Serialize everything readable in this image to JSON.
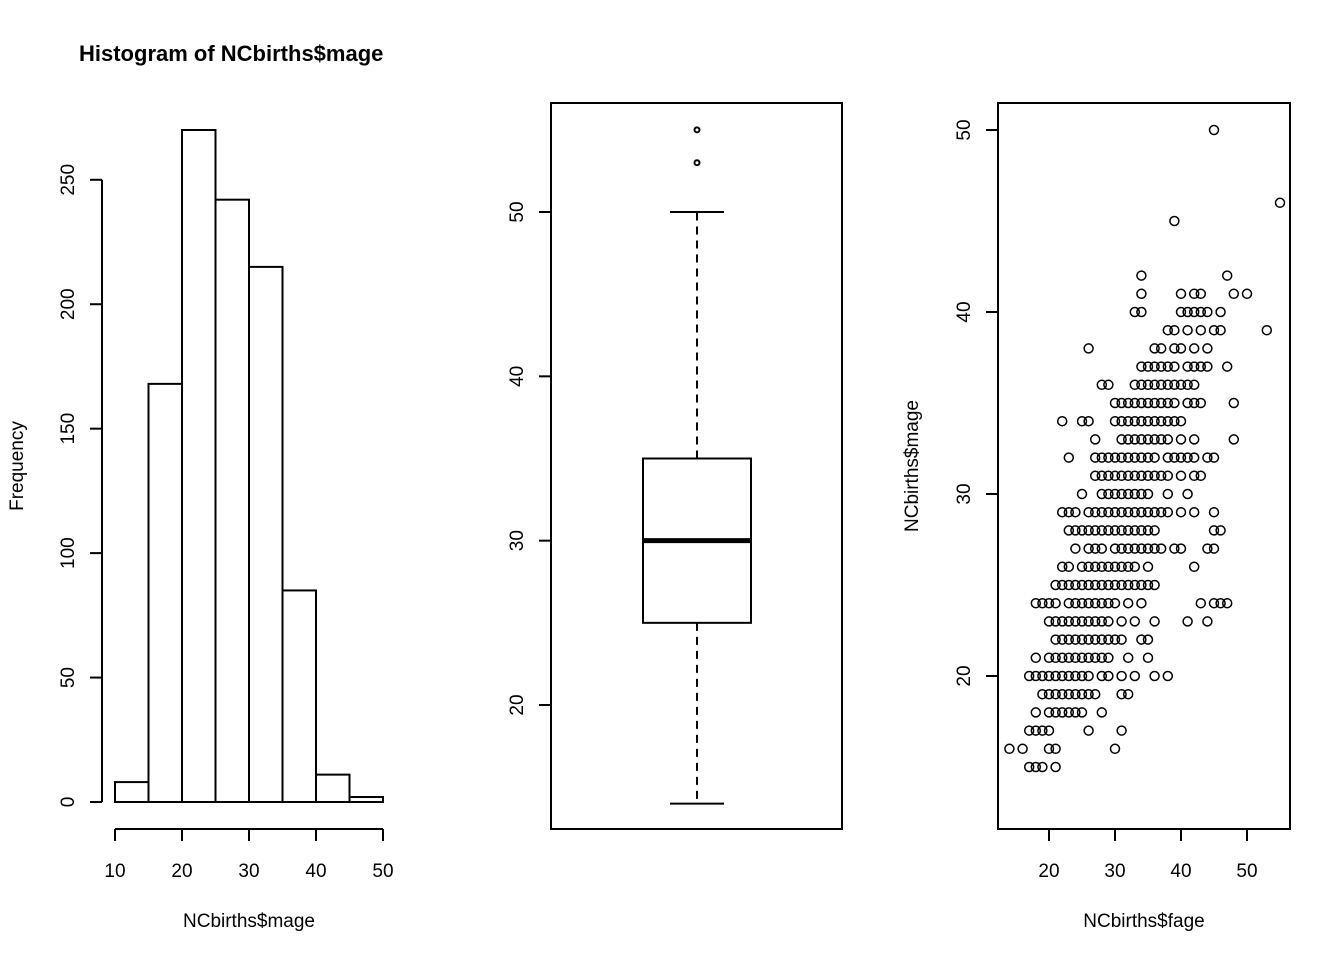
{
  "chart_data": [
    {
      "type": "histogram",
      "title": "Histogram of NCbirths$mage",
      "xlabel": "NCbirths$mage",
      "ylabel": "Frequency",
      "bins": [
        {
          "from": 10,
          "to": 15,
          "count": 8
        },
        {
          "from": 15,
          "to": 20,
          "count": 168
        },
        {
          "from": 20,
          "to": 25,
          "count": 270
        },
        {
          "from": 25,
          "to": 30,
          "count": 242
        },
        {
          "from": 30,
          "to": 35,
          "count": 215
        },
        {
          "from": 35,
          "to": 40,
          "count": 85
        },
        {
          "from": 40,
          "to": 45,
          "count": 11
        },
        {
          "from": 45,
          "to": 50,
          "count": 2
        }
      ],
      "xticks": [
        10,
        20,
        30,
        40,
        50
      ],
      "yticks": [
        0,
        50,
        100,
        150,
        200,
        250
      ],
      "xlim": [
        10,
        50
      ],
      "ylim": [
        0,
        270
      ]
    },
    {
      "type": "boxplot",
      "title": "",
      "xlabel": "",
      "ylabel": "",
      "stats": {
        "lower_whisker": 14,
        "q1": 25,
        "median": 30,
        "q3": 35,
        "upper_whisker": 50
      },
      "outliers": [
        53,
        55
      ],
      "yticks": [
        20,
        30,
        40,
        50
      ],
      "ylim": [
        14,
        55
      ]
    },
    {
      "type": "scatter",
      "title": "",
      "xlabel": "NCbirths$fage",
      "ylabel": "NCbirths$mage",
      "xticks": [
        20,
        30,
        40,
        50
      ],
      "yticks": [
        20,
        30,
        40,
        50
      ],
      "xlim": [
        14,
        55
      ],
      "ylim": [
        15,
        50
      ],
      "points": [
        [
          14,
          16
        ],
        [
          16,
          16
        ],
        [
          20,
          16
        ],
        [
          21,
          16
        ],
        [
          30,
          16
        ],
        [
          17,
          15
        ],
        [
          18,
          15
        ],
        [
          19,
          15
        ],
        [
          21,
          15
        ],
        [
          17,
          17
        ],
        [
          18,
          17
        ],
        [
          19,
          17
        ],
        [
          20,
          17
        ],
        [
          26,
          17
        ],
        [
          31,
          17
        ],
        [
          18,
          18
        ],
        [
          20,
          18
        ],
        [
          21,
          18
        ],
        [
          22,
          18
        ],
        [
          23,
          18
        ],
        [
          24,
          18
        ],
        [
          25,
          18
        ],
        [
          28,
          18
        ],
        [
          19,
          19
        ],
        [
          20,
          19
        ],
        [
          21,
          19
        ],
        [
          22,
          19
        ],
        [
          23,
          19
        ],
        [
          24,
          19
        ],
        [
          25,
          19
        ],
        [
          26,
          19
        ],
        [
          27,
          19
        ],
        [
          31,
          19
        ],
        [
          32,
          19
        ],
        [
          17,
          20
        ],
        [
          18,
          20
        ],
        [
          19,
          20
        ],
        [
          20,
          20
        ],
        [
          21,
          20
        ],
        [
          22,
          20
        ],
        [
          23,
          20
        ],
        [
          24,
          20
        ],
        [
          25,
          20
        ],
        [
          26,
          20
        ],
        [
          28,
          20
        ],
        [
          29,
          20
        ],
        [
          31,
          20
        ],
        [
          33,
          20
        ],
        [
          36,
          20
        ],
        [
          38,
          20
        ],
        [
          18,
          21
        ],
        [
          20,
          21
        ],
        [
          21,
          21
        ],
        [
          22,
          21
        ],
        [
          23,
          21
        ],
        [
          24,
          21
        ],
        [
          25,
          21
        ],
        [
          26,
          21
        ],
        [
          27,
          21
        ],
        [
          28,
          21
        ],
        [
          29,
          21
        ],
        [
          32,
          21
        ],
        [
          35,
          21
        ],
        [
          21,
          22
        ],
        [
          22,
          22
        ],
        [
          23,
          22
        ],
        [
          24,
          22
        ],
        [
          25,
          22
        ],
        [
          26,
          22
        ],
        [
          27,
          22
        ],
        [
          28,
          22
        ],
        [
          29,
          22
        ],
        [
          30,
          22
        ],
        [
          31,
          22
        ],
        [
          34,
          22
        ],
        [
          35,
          22
        ],
        [
          20,
          23
        ],
        [
          21,
          23
        ],
        [
          22,
          23
        ],
        [
          23,
          23
        ],
        [
          24,
          23
        ],
        [
          25,
          23
        ],
        [
          26,
          23
        ],
        [
          27,
          23
        ],
        [
          28,
          23
        ],
        [
          29,
          23
        ],
        [
          31,
          23
        ],
        [
          33,
          23
        ],
        [
          36,
          23
        ],
        [
          41,
          23
        ],
        [
          44,
          23
        ],
        [
          18,
          24
        ],
        [
          19,
          24
        ],
        [
          20,
          24
        ],
        [
          21,
          24
        ],
        [
          23,
          24
        ],
        [
          24,
          24
        ],
        [
          25,
          24
        ],
        [
          26,
          24
        ],
        [
          27,
          24
        ],
        [
          28,
          24
        ],
        [
          29,
          24
        ],
        [
          30,
          24
        ],
        [
          32,
          24
        ],
        [
          34,
          24
        ],
        [
          43,
          24
        ],
        [
          45,
          24
        ],
        [
          46,
          24
        ],
        [
          47,
          24
        ],
        [
          21,
          25
        ],
        [
          22,
          25
        ],
        [
          23,
          25
        ],
        [
          24,
          25
        ],
        [
          25,
          25
        ],
        [
          26,
          25
        ],
        [
          27,
          25
        ],
        [
          28,
          25
        ],
        [
          29,
          25
        ],
        [
          30,
          25
        ],
        [
          31,
          25
        ],
        [
          32,
          25
        ],
        [
          33,
          25
        ],
        [
          34,
          25
        ],
        [
          35,
          25
        ],
        [
          36,
          25
        ],
        [
          22,
          26
        ],
        [
          23,
          26
        ],
        [
          25,
          26
        ],
        [
          26,
          26
        ],
        [
          27,
          26
        ],
        [
          28,
          26
        ],
        [
          29,
          26
        ],
        [
          30,
          26
        ],
        [
          31,
          26
        ],
        [
          32,
          26
        ],
        [
          33,
          26
        ],
        [
          35,
          26
        ],
        [
          42,
          26
        ],
        [
          24,
          27
        ],
        [
          26,
          27
        ],
        [
          27,
          27
        ],
        [
          28,
          27
        ],
        [
          30,
          27
        ],
        [
          31,
          27
        ],
        [
          32,
          27
        ],
        [
          33,
          27
        ],
        [
          34,
          27
        ],
        [
          35,
          27
        ],
        [
          36,
          27
        ],
        [
          37,
          27
        ],
        [
          39,
          27
        ],
        [
          40,
          27
        ],
        [
          44,
          27
        ],
        [
          45,
          27
        ],
        [
          23,
          28
        ],
        [
          24,
          28
        ],
        [
          25,
          28
        ],
        [
          26,
          28
        ],
        [
          27,
          28
        ],
        [
          28,
          28
        ],
        [
          29,
          28
        ],
        [
          30,
          28
        ],
        [
          31,
          28
        ],
        [
          32,
          28
        ],
        [
          33,
          28
        ],
        [
          34,
          28
        ],
        [
          35,
          28
        ],
        [
          36,
          28
        ],
        [
          45,
          28
        ],
        [
          46,
          28
        ],
        [
          22,
          29
        ],
        [
          23,
          29
        ],
        [
          24,
          29
        ],
        [
          26,
          29
        ],
        [
          27,
          29
        ],
        [
          28,
          29
        ],
        [
          29,
          29
        ],
        [
          30,
          29
        ],
        [
          31,
          29
        ],
        [
          32,
          29
        ],
        [
          33,
          29
        ],
        [
          34,
          29
        ],
        [
          35,
          29
        ],
        [
          36,
          29
        ],
        [
          37,
          29
        ],
        [
          38,
          29
        ],
        [
          40,
          29
        ],
        [
          42,
          29
        ],
        [
          45,
          29
        ],
        [
          25,
          30
        ],
        [
          28,
          30
        ],
        [
          29,
          30
        ],
        [
          30,
          30
        ],
        [
          31,
          30
        ],
        [
          32,
          30
        ],
        [
          33,
          30
        ],
        [
          34,
          30
        ],
        [
          35,
          30
        ],
        [
          38,
          30
        ],
        [
          41,
          30
        ],
        [
          27,
          31
        ],
        [
          28,
          31
        ],
        [
          29,
          31
        ],
        [
          30,
          31
        ],
        [
          31,
          31
        ],
        [
          32,
          31
        ],
        [
          33,
          31
        ],
        [
          34,
          31
        ],
        [
          35,
          31
        ],
        [
          36,
          31
        ],
        [
          37,
          31
        ],
        [
          38,
          31
        ],
        [
          40,
          31
        ],
        [
          42,
          31
        ],
        [
          43,
          31
        ],
        [
          23,
          32
        ],
        [
          27,
          32
        ],
        [
          28,
          32
        ],
        [
          29,
          32
        ],
        [
          30,
          32
        ],
        [
          31,
          32
        ],
        [
          32,
          32
        ],
        [
          33,
          32
        ],
        [
          34,
          32
        ],
        [
          35,
          32
        ],
        [
          36,
          32
        ],
        [
          38,
          32
        ],
        [
          39,
          32
        ],
        [
          40,
          32
        ],
        [
          41,
          32
        ],
        [
          42,
          32
        ],
        [
          44,
          32
        ],
        [
          45,
          32
        ],
        [
          27,
          33
        ],
        [
          31,
          33
        ],
        [
          32,
          33
        ],
        [
          33,
          33
        ],
        [
          34,
          33
        ],
        [
          35,
          33
        ],
        [
          36,
          33
        ],
        [
          37,
          33
        ],
        [
          38,
          33
        ],
        [
          40,
          33
        ],
        [
          42,
          33
        ],
        [
          48,
          33
        ],
        [
          22,
          34
        ],
        [
          25,
          34
        ],
        [
          26,
          34
        ],
        [
          30,
          34
        ],
        [
          31,
          34
        ],
        [
          32,
          34
        ],
        [
          33,
          34
        ],
        [
          34,
          34
        ],
        [
          35,
          34
        ],
        [
          36,
          34
        ],
        [
          37,
          34
        ],
        [
          38,
          34
        ],
        [
          39,
          34
        ],
        [
          40,
          34
        ],
        [
          30,
          35
        ],
        [
          31,
          35
        ],
        [
          32,
          35
        ],
        [
          33,
          35
        ],
        [
          34,
          35
        ],
        [
          35,
          35
        ],
        [
          36,
          35
        ],
        [
          37,
          35
        ],
        [
          38,
          35
        ],
        [
          39,
          35
        ],
        [
          41,
          35
        ],
        [
          42,
          35
        ],
        [
          43,
          35
        ],
        [
          48,
          35
        ],
        [
          28,
          36
        ],
        [
          29,
          36
        ],
        [
          33,
          36
        ],
        [
          34,
          36
        ],
        [
          35,
          36
        ],
        [
          36,
          36
        ],
        [
          37,
          36
        ],
        [
          38,
          36
        ],
        [
          39,
          36
        ],
        [
          40,
          36
        ],
        [
          41,
          36
        ],
        [
          42,
          36
        ],
        [
          34,
          37
        ],
        [
          35,
          37
        ],
        [
          36,
          37
        ],
        [
          37,
          37
        ],
        [
          38,
          37
        ],
        [
          39,
          37
        ],
        [
          41,
          37
        ],
        [
          42,
          37
        ],
        [
          43,
          37
        ],
        [
          44,
          37
        ],
        [
          47,
          37
        ],
        [
          26,
          38
        ],
        [
          36,
          38
        ],
        [
          37,
          38
        ],
        [
          39,
          38
        ],
        [
          40,
          38
        ],
        [
          42,
          38
        ],
        [
          44,
          38
        ],
        [
          38,
          39
        ],
        [
          39,
          39
        ],
        [
          41,
          39
        ],
        [
          43,
          39
        ],
        [
          45,
          39
        ],
        [
          46,
          39
        ],
        [
          53,
          39
        ],
        [
          33,
          40
        ],
        [
          34,
          40
        ],
        [
          40,
          40
        ],
        [
          41,
          40
        ],
        [
          42,
          40
        ],
        [
          43,
          40
        ],
        [
          44,
          40
        ],
        [
          46,
          40
        ],
        [
          34,
          41
        ],
        [
          40,
          41
        ],
        [
          42,
          41
        ],
        [
          43,
          41
        ],
        [
          48,
          41
        ],
        [
          50,
          41
        ],
        [
          34,
          42
        ],
        [
          47,
          42
        ],
        [
          39,
          45
        ],
        [
          55,
          46
        ],
        [
          45,
          50
        ]
      ]
    }
  ]
}
